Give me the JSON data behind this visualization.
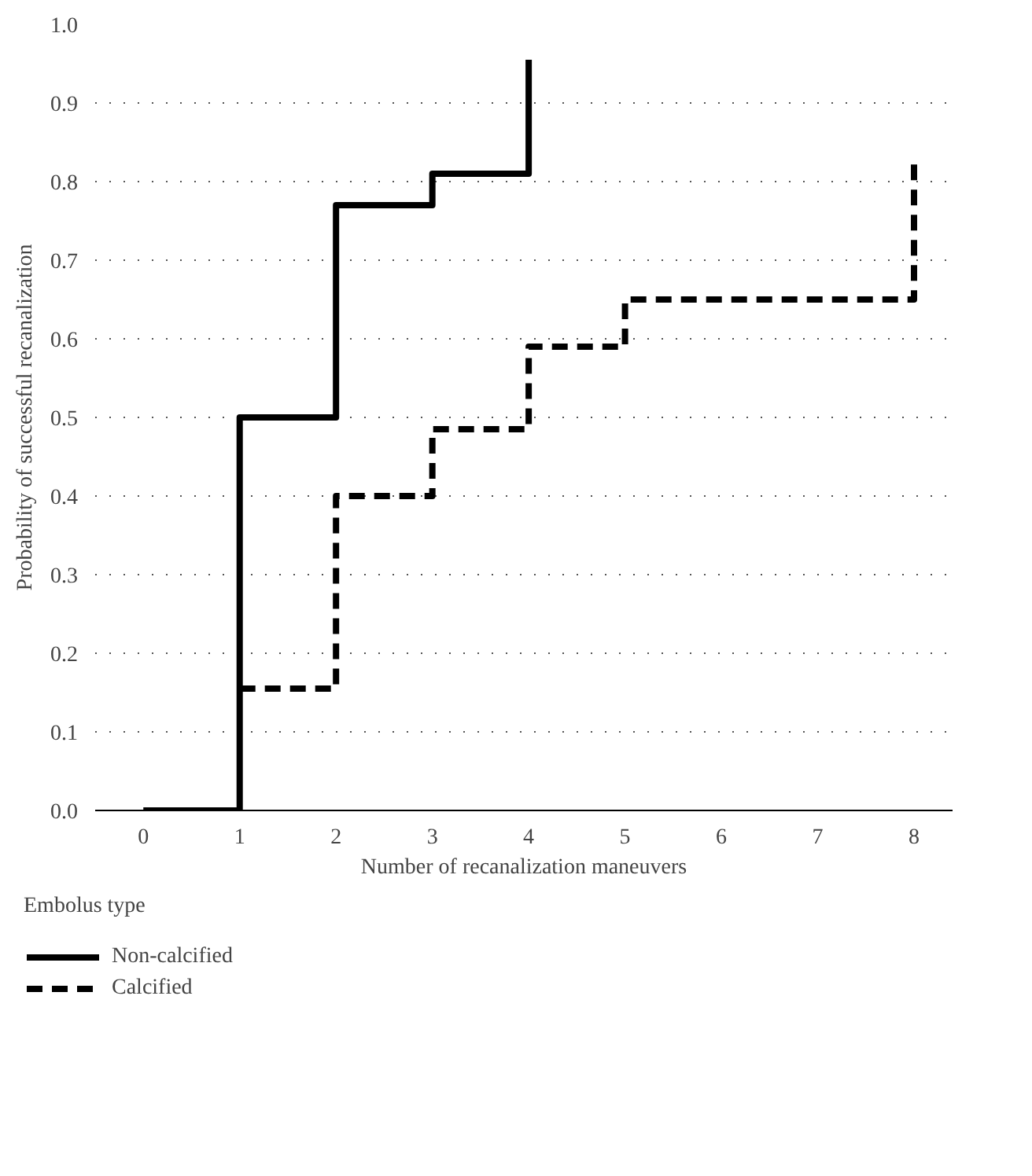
{
  "chart_data": {
    "type": "step",
    "xlabel": "Number of recanalization maneuvers",
    "ylabel": "Probability of successful recanalization",
    "legend_title": "Embolus type",
    "xlim": [
      -0.5,
      8.4
    ],
    "xticks": [
      0,
      1,
      2,
      3,
      4,
      5,
      6,
      7,
      8
    ],
    "ylim": [
      0,
      1.0
    ],
    "yticks": [
      {
        "value": 0,
        "label": "0.0"
      },
      {
        "value": 0.1,
        "label": "0.1"
      },
      {
        "value": 0.2,
        "label": "0.2"
      },
      {
        "value": 0.3,
        "label": "0.3"
      },
      {
        "value": 0.4,
        "label": "0.4"
      },
      {
        "value": 0.5,
        "label": "0.5"
      },
      {
        "value": 0.6,
        "label": "0.6"
      },
      {
        "value": 0.7,
        "label": "0.7"
      },
      {
        "value": 0.8,
        "label": "0.8"
      },
      {
        "value": 0.9,
        "label": "0.9"
      },
      {
        "value": 1.0,
        "label": "1.0"
      }
    ],
    "grid": "y",
    "legend": "bottom",
    "series": [
      {
        "name": "Non-calcified",
        "color": "#000000",
        "line_style": "solid",
        "x": [
          0,
          1,
          2,
          3,
          4
        ],
        "values": [
          0,
          0.5,
          0.77,
          0.81,
          0.955
        ]
      },
      {
        "name": "Calcified",
        "color": "#000000",
        "line_style": "dashed",
        "x": [
          1,
          2,
          3,
          4,
          5,
          8
        ],
        "values": [
          0.155,
          0.4,
          0.485,
          0.59,
          0.65,
          0.825
        ]
      }
    ]
  }
}
